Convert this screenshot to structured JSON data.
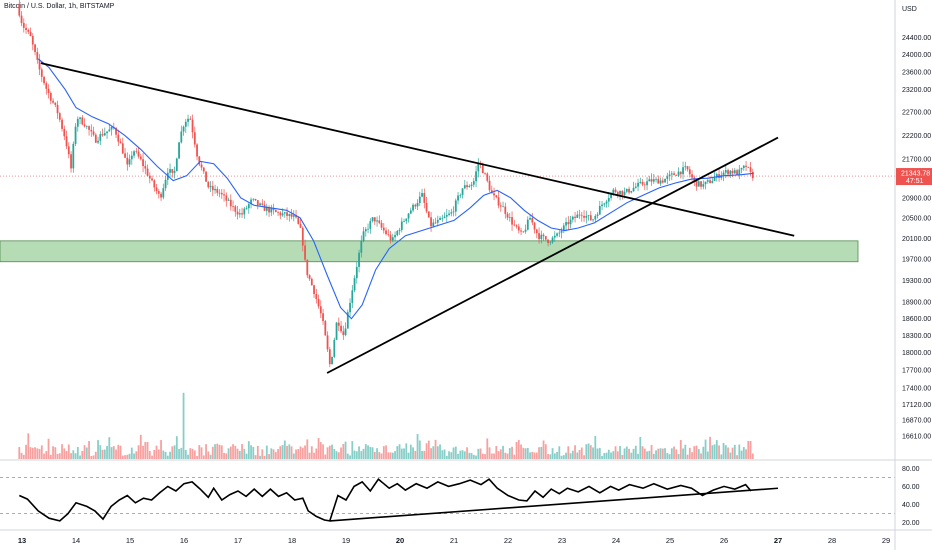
{
  "header": {
    "symbol_title": "Bitcoin / U.S. Dollar, 1h, BITSTAMP",
    "currency": "USD"
  },
  "price_badge": {
    "price": "21343.78",
    "countdown": "47:51",
    "color": "#ef5350"
  },
  "colors": {
    "up": "#26a69a",
    "down": "#ef5350",
    "ma": "#2962ff",
    "zone": "#9ed09e",
    "trendline": "#000000"
  },
  "chart_data": [
    {
      "type": "candlestick",
      "title": "Bitcoin / U.S. Dollar, 1h, BITSTAMP",
      "x_axis": {
        "labels": [
          "13",
          "14",
          "15",
          "16",
          "17",
          "18",
          "19",
          "20",
          "21",
          "22",
          "23",
          "24",
          "25",
          "26",
          "27",
          "28",
          "29"
        ],
        "bold_labels": [
          "13",
          "20",
          "27"
        ]
      },
      "y_axis": {
        "unit": "USD",
        "ticks": [
          24400,
          24000,
          23600,
          23200,
          22700,
          22200,
          21700,
          21300,
          20900,
          20500,
          20100,
          19700,
          19300,
          18900,
          18600,
          18300,
          18000,
          17700,
          17400,
          17120,
          16870,
          16610
        ],
        "tick_labels": [
          "24400.00",
          "24000.00",
          "23600.00",
          "23200.00",
          "22700.00",
          "22200.00",
          "21700.00",
          "21300.00",
          "20900.00",
          "20500.00",
          "20100.00",
          "19700.00",
          "19300.00",
          "18900.00",
          "18600.00",
          "18300.00",
          "18000.00",
          "17700.00",
          "17400.00",
          "17120.00",
          "16870.00",
          "16610.00"
        ],
        "scale": "log",
        "range": [
          16450,
          25100
        ]
      },
      "price_path": [
        [
          12.95,
          25200
        ],
        [
          13.05,
          24700
        ],
        [
          13.2,
          24400
        ],
        [
          13.35,
          23700
        ],
        [
          13.5,
          23200
        ],
        [
          13.7,
          22700
        ],
        [
          13.85,
          22100
        ],
        [
          13.95,
          21500
        ],
        [
          14.05,
          22600
        ],
        [
          14.2,
          22450
        ],
        [
          14.4,
          22100
        ],
        [
          14.55,
          22250
        ],
        [
          14.75,
          22350
        ],
        [
          14.9,
          21900
        ],
        [
          15.0,
          21500
        ],
        [
          15.1,
          21900
        ],
        [
          15.25,
          21650
        ],
        [
          15.45,
          21200
        ],
        [
          15.6,
          20900
        ],
        [
          15.75,
          21500
        ],
        [
          15.85,
          21300
        ],
        [
          15.95,
          22100
        ],
        [
          16.05,
          22500
        ],
        [
          16.15,
          22600
        ],
        [
          16.3,
          21700
        ],
        [
          16.5,
          21100
        ],
        [
          16.7,
          21000
        ],
        [
          16.95,
          20700
        ],
        [
          17.1,
          20550
        ],
        [
          17.3,
          20850
        ],
        [
          17.5,
          20700
        ],
        [
          17.75,
          20600
        ],
        [
          17.95,
          20550
        ],
        [
          18.1,
          20500
        ],
        [
          18.22,
          20200
        ],
        [
          18.3,
          19500
        ],
        [
          18.45,
          19100
        ],
        [
          18.6,
          18600
        ],
        [
          18.75,
          17750
        ],
        [
          18.88,
          18600
        ],
        [
          19.0,
          18300
        ],
        [
          19.15,
          19100
        ],
        [
          19.35,
          20150
        ],
        [
          19.55,
          20500
        ],
        [
          19.7,
          20300
        ],
        [
          19.9,
          20050
        ],
        [
          20.0,
          20250
        ],
        [
          20.2,
          20600
        ],
        [
          20.45,
          20950
        ],
        [
          20.6,
          20350
        ],
        [
          20.8,
          20450
        ],
        [
          21.0,
          20600
        ],
        [
          21.2,
          21100
        ],
        [
          21.4,
          21200
        ],
        [
          21.5,
          21650
        ],
        [
          21.6,
          21400
        ],
        [
          21.75,
          20950
        ],
        [
          21.95,
          20700
        ],
        [
          22.15,
          20350
        ],
        [
          22.3,
          20150
        ],
        [
          22.45,
          20500
        ],
        [
          22.6,
          20150
        ],
        [
          22.8,
          20050
        ],
        [
          22.95,
          20150
        ],
        [
          23.15,
          20400
        ],
        [
          23.4,
          20600
        ],
        [
          23.6,
          20450
        ],
        [
          23.8,
          20800
        ],
        [
          24.0,
          21050
        ],
        [
          24.2,
          21000
        ],
        [
          24.45,
          21150
        ],
        [
          24.7,
          21250
        ],
        [
          24.9,
          21250
        ],
        [
          25.15,
          21400
        ],
        [
          25.35,
          21500
        ],
        [
          25.5,
          21200
        ],
        [
          25.65,
          21150
        ],
        [
          25.8,
          21250
        ],
        [
          26.0,
          21400
        ],
        [
          26.15,
          21450
        ],
        [
          26.3,
          21400
        ],
        [
          26.45,
          21550
        ],
        [
          26.55,
          21350
        ]
      ],
      "moving_average": [
        [
          13.3,
          23900
        ],
        [
          13.5,
          23700
        ],
        [
          13.8,
          23200
        ],
        [
          14.0,
          22800
        ],
        [
          14.3,
          22600
        ],
        [
          14.6,
          22450
        ],
        [
          14.9,
          22200
        ],
        [
          15.2,
          21900
        ],
        [
          15.5,
          21550
        ],
        [
          15.8,
          21250
        ],
        [
          16.05,
          21350
        ],
        [
          16.3,
          21650
        ],
        [
          16.55,
          21600
        ],
        [
          16.8,
          21300
        ],
        [
          17.05,
          20900
        ],
        [
          17.3,
          20750
        ],
        [
          17.6,
          20700
        ],
        [
          17.9,
          20650
        ],
        [
          18.15,
          20500
        ],
        [
          18.4,
          20050
        ],
        [
          18.65,
          19400
        ],
        [
          18.9,
          18800
        ],
        [
          19.1,
          18600
        ],
        [
          19.3,
          18850
        ],
        [
          19.55,
          19500
        ],
        [
          19.8,
          19900
        ],
        [
          20.1,
          20150
        ],
        [
          20.4,
          20250
        ],
        [
          20.7,
          20350
        ],
        [
          21.0,
          20450
        ],
        [
          21.3,
          20700
        ],
        [
          21.55,
          20950
        ],
        [
          21.8,
          21050
        ],
        [
          22.05,
          20900
        ],
        [
          22.3,
          20650
        ],
        [
          22.55,
          20450
        ],
        [
          22.8,
          20300
        ],
        [
          23.05,
          20250
        ],
        [
          23.3,
          20300
        ],
        [
          23.6,
          20400
        ],
        [
          23.9,
          20600
        ],
        [
          24.2,
          20800
        ],
        [
          24.5,
          20950
        ],
        [
          24.8,
          21100
        ],
        [
          25.1,
          21200
        ],
        [
          25.4,
          21280
        ],
        [
          25.7,
          21300
        ],
        [
          26.0,
          21350
        ],
        [
          26.3,
          21370
        ],
        [
          26.55,
          21400
        ]
      ],
      "trendlines": [
        {
          "name": "descending resistance",
          "start": [
            13.35,
            23800
          ],
          "end": [
            27.3,
            20150
          ]
        },
        {
          "name": "ascending support",
          "start": [
            18.65,
            17650
          ],
          "end": [
            27.0,
            22150
          ]
        }
      ],
      "zones": [
        {
          "name": "support zone",
          "from": 19650,
          "to": 20050
        }
      ],
      "last_price": 21343.78,
      "grid": false,
      "legend": "none"
    },
    {
      "type": "bar",
      "name": "volume",
      "volume_spikes": [
        [
          13.5,
          18
        ],
        [
          14.4,
          16
        ],
        [
          14.8,
          12
        ],
        [
          15.3,
          14
        ],
        [
          15.85,
          22
        ],
        [
          16.0,
          65
        ],
        [
          18.55,
          14
        ],
        [
          18.75,
          13
        ],
        [
          19.95,
          10
        ],
        [
          21.15,
          8
        ],
        [
          24.6,
          7
        ],
        [
          26.4,
          8
        ]
      ]
    },
    {
      "type": "line",
      "name": "oscillator",
      "y_axis": {
        "ticks": [
          80,
          60,
          40,
          20
        ],
        "tick_labels": [
          "80.00",
          "60.00",
          "40.00",
          "20.00"
        ],
        "range": [
          12,
          88
        ]
      },
      "levels": [
        70,
        30
      ],
      "values": [
        [
          12.95,
          50
        ],
        [
          13.1,
          46
        ],
        [
          13.3,
          33
        ],
        [
          13.5,
          25
        ],
        [
          13.7,
          22
        ],
        [
          13.85,
          30
        ],
        [
          14.0,
          42
        ],
        [
          14.2,
          38
        ],
        [
          14.35,
          33
        ],
        [
          14.5,
          24
        ],
        [
          14.65,
          38
        ],
        [
          14.8,
          45
        ],
        [
          14.95,
          50
        ],
        [
          15.1,
          42
        ],
        [
          15.25,
          47
        ],
        [
          15.4,
          45
        ],
        [
          15.55,
          53
        ],
        [
          15.7,
          60
        ],
        [
          15.85,
          55
        ],
        [
          16.0,
          63
        ],
        [
          16.15,
          65
        ],
        [
          16.3,
          57
        ],
        [
          16.45,
          48
        ],
        [
          16.55,
          58
        ],
        [
          16.7,
          45
        ],
        [
          16.85,
          51
        ],
        [
          17.0,
          55
        ],
        [
          17.15,
          49
        ],
        [
          17.3,
          57
        ],
        [
          17.45,
          49
        ],
        [
          17.6,
          57
        ],
        [
          17.75,
          49
        ],
        [
          17.9,
          53
        ],
        [
          18.05,
          45
        ],
        [
          18.2,
          47
        ],
        [
          18.3,
          33
        ],
        [
          18.45,
          27
        ],
        [
          18.6,
          23
        ],
        [
          18.7,
          22
        ],
        [
          18.85,
          50
        ],
        [
          19.0,
          45
        ],
        [
          19.15,
          60
        ],
        [
          19.3,
          65
        ],
        [
          19.45,
          55
        ],
        [
          19.6,
          68
        ],
        [
          19.8,
          58
        ],
        [
          19.95,
          63
        ],
        [
          20.1,
          56
        ],
        [
          20.3,
          63
        ],
        [
          20.5,
          58
        ],
        [
          20.7,
          65
        ],
        [
          20.9,
          60
        ],
        [
          21.1,
          63
        ],
        [
          21.3,
          67
        ],
        [
          21.5,
          62
        ],
        [
          21.65,
          68
        ],
        [
          21.8,
          58
        ],
        [
          22.0,
          50
        ],
        [
          22.2,
          45
        ],
        [
          22.35,
          44
        ],
        [
          22.5,
          55
        ],
        [
          22.65,
          48
        ],
        [
          22.8,
          57
        ],
        [
          22.95,
          52
        ],
        [
          23.1,
          58
        ],
        [
          23.3,
          54
        ],
        [
          23.5,
          60
        ],
        [
          23.7,
          53
        ],
        [
          23.9,
          60
        ],
        [
          24.05,
          56
        ],
        [
          24.25,
          62
        ],
        [
          24.5,
          58
        ],
        [
          24.7,
          63
        ],
        [
          24.95,
          57
        ],
        [
          25.2,
          61
        ],
        [
          25.4,
          58
        ],
        [
          25.6,
          50
        ],
        [
          25.8,
          56
        ],
        [
          26.0,
          60
        ],
        [
          26.2,
          57
        ],
        [
          26.4,
          62
        ],
        [
          26.5,
          55
        ]
      ],
      "trendline": {
        "start": [
          18.7,
          22
        ],
        "end": [
          27.0,
          58
        ]
      }
    }
  ]
}
